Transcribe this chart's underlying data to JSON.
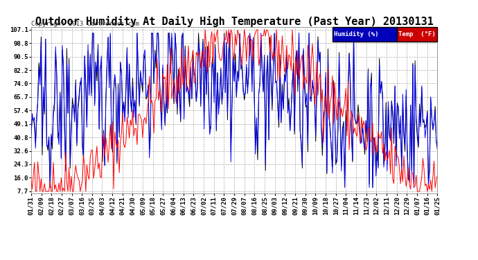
{
  "title": "Outdoor Humidity At Daily High Temperature (Past Year) 20130131",
  "copyright": "Copyright 2013 Cartronics.com",
  "legend_humidity_label": "Humidity (%)",
  "legend_temp_label": "Temp  (°F)",
  "legend_humidity_bg": "#0000bb",
  "legend_temp_bg": "#cc0000",
  "yticks": [
    7.7,
    16.0,
    24.3,
    32.6,
    40.8,
    49.1,
    57.4,
    65.7,
    74.0,
    82.2,
    90.5,
    98.8,
    107.1
  ],
  "xtick_labels": [
    "01/31",
    "02/09",
    "02/18",
    "02/27",
    "03/07",
    "03/16",
    "03/25",
    "04/03",
    "04/12",
    "04/21",
    "04/30",
    "05/09",
    "05/18",
    "05/27",
    "06/04",
    "06/13",
    "06/23",
    "07/02",
    "07/11",
    "07/20",
    "07/29",
    "08/07",
    "08/16",
    "08/25",
    "09/03",
    "09/12",
    "09/21",
    "09/30",
    "10/09",
    "10/18",
    "10/27",
    "11/04",
    "11/14",
    "11/23",
    "12/02",
    "12/11",
    "12/20",
    "12/29",
    "01/07",
    "01/16",
    "01/25"
  ],
  "background_color": "#ffffff",
  "grid_color": "#aaaaaa",
  "title_fontsize": 11,
  "copyright_fontsize": 6.5,
  "axis_fontsize": 6.5,
  "humidity_color": "#0000ff",
  "temp_color": "#ff0000",
  "black_color": "#000000",
  "line_width": 0.7,
  "ymin": 7.7,
  "ymax": 107.1
}
